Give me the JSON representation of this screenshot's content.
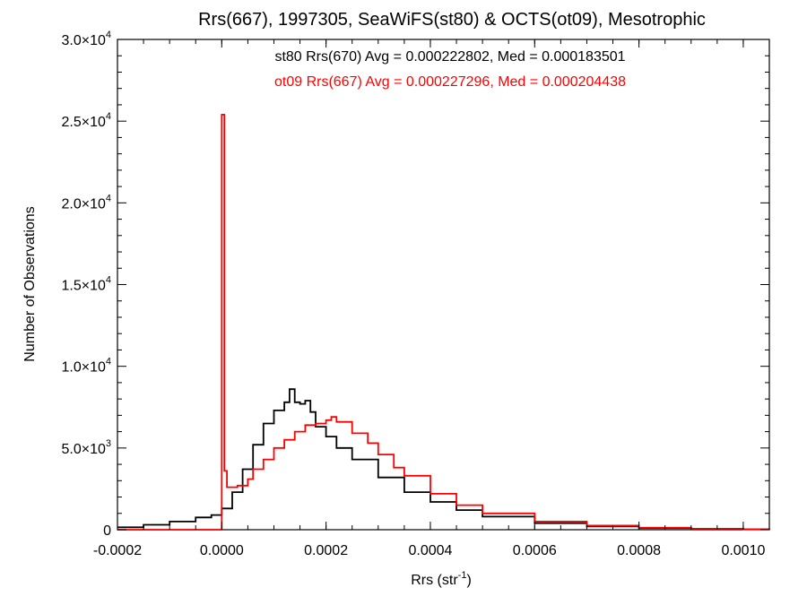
{
  "chart_data": {
    "type": "line",
    "title": "Rrs(667), 1997305, SeaWiFS(st80) & OCTS(ot09), Mesotrophic",
    "xlabel": {
      "main": "Rrs (str",
      "sup": "-1",
      "end": ")"
    },
    "ylabel": "Number of Observations",
    "xlim": [
      -0.0002,
      0.00105
    ],
    "ylim": [
      0,
      30000
    ],
    "grid": false,
    "step": true,
    "xticks": [
      {
        "value": -0.0002,
        "label": "-0.0002"
      },
      {
        "value": 0.0,
        "label": "0.0000"
      },
      {
        "value": 0.0002,
        "label": "0.0002"
      },
      {
        "value": 0.0004,
        "label": "0.0004"
      },
      {
        "value": 0.0006,
        "label": "0.0006"
      },
      {
        "value": 0.0008,
        "label": "0.0008"
      },
      {
        "value": 0.001,
        "label": "0.0010"
      }
    ],
    "yticks": [
      {
        "value": 0,
        "mant": "0",
        "exp": ""
      },
      {
        "value": 5000,
        "mant": "5.0×10",
        "exp": "3"
      },
      {
        "value": 10000,
        "mant": "1.0×10",
        "exp": "4"
      },
      {
        "value": 15000,
        "mant": "1.5×10",
        "exp": "4"
      },
      {
        "value": 20000,
        "mant": "2.0×10",
        "exp": "4"
      },
      {
        "value": 25000,
        "mant": "2.5×10",
        "exp": "4"
      },
      {
        "value": 30000,
        "mant": "3.0×10",
        "exp": "4"
      }
    ],
    "annotations": [
      {
        "text": "st80 Rrs(670) Avg = 0.000222802, Med = 0.000183501",
        "color": "#000000"
      },
      {
        "text": "ot09 Rrs(667) Avg = 0.000227296, Med = 0.000204438",
        "color": "#ff0000"
      }
    ],
    "series": [
      {
        "color": "#000000",
        "x": [
          -0.0002,
          -0.00015,
          -0.0001,
          -5e-05,
          -2e-05,
          0.0,
          2e-05,
          4e-05,
          6e-05,
          8e-05,
          0.0001,
          0.00012,
          0.00013,
          0.00014,
          0.00015,
          0.00016,
          0.00017,
          0.00018,
          0.0002,
          0.00022,
          0.00025,
          0.0003,
          0.00035,
          0.0004,
          0.00045,
          0.0005,
          0.0006,
          0.0007,
          0.0008,
          0.0009,
          0.001,
          0.00105
        ],
        "y": [
          150,
          300,
          500,
          750,
          900,
          1300,
          2300,
          3700,
          5200,
          6500,
          7300,
          7800,
          8600,
          7800,
          7700,
          7900,
          7200,
          6300,
          5700,
          5000,
          4300,
          3200,
          2300,
          1700,
          1200,
          800,
          400,
          200,
          100,
          50,
          20,
          10
        ]
      },
      {
        "color": "#ff0000",
        "x": [
          -0.0002,
          -0.0001,
          -1e-05,
          0.0,
          5e-06,
          1e-05,
          3e-05,
          5e-05,
          6e-05,
          8e-05,
          0.0001,
          0.00012,
          0.00014,
          0.00016,
          0.00018,
          0.0002,
          0.00021,
          0.00022,
          0.00025,
          0.00028,
          0.0003,
          0.00033,
          0.00035,
          0.0004,
          0.00045,
          0.0005,
          0.0006,
          0.0007,
          0.0008,
          0.0009,
          0.001,
          0.00105
        ],
        "y": [
          0,
          0,
          0,
          25400,
          3600,
          2600,
          2700,
          3100,
          3700,
          4300,
          5000,
          5500,
          6000,
          6400,
          6500,
          6700,
          6900,
          6600,
          5900,
          5300,
          4600,
          3800,
          3300,
          2200,
          1500,
          1000,
          500,
          250,
          120,
          60,
          30,
          10
        ]
      }
    ]
  }
}
